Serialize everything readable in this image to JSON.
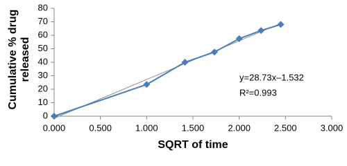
{
  "chart_data": {
    "type": "line",
    "x_label": "SQRT of time",
    "y_label": "Cumulative % drug released",
    "x": [
      0,
      1,
      1.414,
      1.732,
      2,
      2.236,
      2.449
    ],
    "series": [
      {
        "color": "#4a7ebb",
        "values": [
          0,
          23.5,
          40,
          47.5,
          57.5,
          63.5,
          68
        ]
      }
    ],
    "trendline": {
      "slope": 28.73,
      "intercept": -1.532,
      "color": "#8c8c8c"
    },
    "annotations": [
      "y=28.73x–1.532",
      "R²=0.993"
    ],
    "xlim": [
      0,
      3
    ],
    "xticks": [
      {
        "value": 0,
        "label": "0.000"
      },
      {
        "value": 0.5,
        "label": "0.500"
      },
      {
        "value": 1,
        "label": "1.000"
      },
      {
        "value": 1.5,
        "label": "1.500"
      },
      {
        "value": 2,
        "label": "2.000"
      },
      {
        "value": 2.5,
        "label": "2.500"
      },
      {
        "value": 3,
        "label": "3.000"
      }
    ],
    "ylim": [
      0,
      80
    ],
    "yticks": [
      0,
      10,
      20,
      30,
      40,
      50,
      60,
      70,
      80
    ]
  }
}
